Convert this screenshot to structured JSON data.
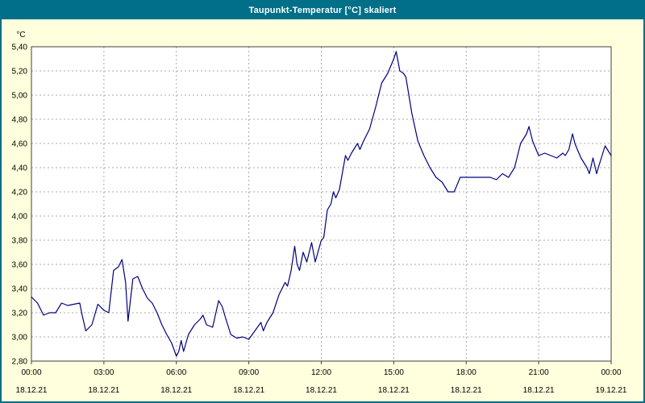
{
  "window": {
    "title": "Taupunkt-Temperatur [°C] skaliert"
  },
  "colors": {
    "title_bar": "#006f87",
    "page_background": "#ffffdd",
    "plot_background": "#ffffff",
    "grid": "#a8a8a8",
    "frame": "#404040",
    "line": "#000080"
  },
  "chart_data": {
    "type": "line",
    "title": "Taupunkt-Temperatur [°C] skaliert",
    "ylabel": "°C",
    "ylim": [
      2.8,
      5.4
    ],
    "ytick_step": 0.2,
    "ytick_labels": [
      "5,40",
      "5,20",
      "5,00",
      "4,80",
      "4,60",
      "4,40",
      "4,20",
      "4,00",
      "3,80",
      "3,60",
      "3,40",
      "3,20",
      "3,00",
      "2,80"
    ],
    "x_hours_range": [
      0,
      24
    ],
    "grid": "dashed",
    "legend_position": "none",
    "xticks": [
      {
        "hour": 0,
        "time": "00:00",
        "date": "18.12.21"
      },
      {
        "hour": 3,
        "time": "03:00",
        "date": "18.12.21"
      },
      {
        "hour": 6,
        "time": "06:00",
        "date": "18.12.21"
      },
      {
        "hour": 9,
        "time": "09:00",
        "date": "18.12.21"
      },
      {
        "hour": 12,
        "time": "12:00",
        "date": "18.12.21"
      },
      {
        "hour": 15,
        "time": "15:00",
        "date": "18.12.21"
      },
      {
        "hour": 18,
        "time": "18:00",
        "date": "18.12.21"
      },
      {
        "hour": 21,
        "time": "21:00",
        "date": "18.12.21"
      },
      {
        "hour": 24,
        "time": "00:00",
        "date": "19.12.21"
      }
    ],
    "series": [
      {
        "name": "Taupunkt-Temperatur",
        "color": "#000080",
        "points": [
          [
            0,
            3.33
          ],
          [
            0.25,
            3.28
          ],
          [
            0.5,
            3.18
          ],
          [
            0.75,
            3.2
          ],
          [
            1,
            3.2
          ],
          [
            1.25,
            3.28
          ],
          [
            1.5,
            3.26
          ],
          [
            1.75,
            3.27
          ],
          [
            2,
            3.28
          ],
          [
            2.1,
            3.18
          ],
          [
            2.25,
            3.05
          ],
          [
            2.5,
            3.1
          ],
          [
            2.75,
            3.27
          ],
          [
            3,
            3.22
          ],
          [
            3.2,
            3.2
          ],
          [
            3.4,
            3.55
          ],
          [
            3.6,
            3.58
          ],
          [
            3.75,
            3.64
          ],
          [
            3.9,
            3.45
          ],
          [
            4,
            3.13
          ],
          [
            4.2,
            3.48
          ],
          [
            4.4,
            3.5
          ],
          [
            4.6,
            3.4
          ],
          [
            4.8,
            3.32
          ],
          [
            5,
            3.28
          ],
          [
            5.2,
            3.2
          ],
          [
            5.4,
            3.1
          ],
          [
            5.6,
            3.02
          ],
          [
            5.8,
            2.95
          ],
          [
            6,
            2.84
          ],
          [
            6.1,
            2.88
          ],
          [
            6.2,
            2.97
          ],
          [
            6.3,
            2.88
          ],
          [
            6.5,
            3.02
          ],
          [
            6.75,
            3.1
          ],
          [
            7,
            3.15
          ],
          [
            7.1,
            3.18
          ],
          [
            7.25,
            3.1
          ],
          [
            7.5,
            3.08
          ],
          [
            7.75,
            3.3
          ],
          [
            7.9,
            3.25
          ],
          [
            8,
            3.18
          ],
          [
            8.25,
            3.02
          ],
          [
            8.5,
            2.99
          ],
          [
            8.75,
            3.0
          ],
          [
            9,
            2.98
          ],
          [
            9.25,
            3.05
          ],
          [
            9.5,
            3.12
          ],
          [
            9.6,
            3.05
          ],
          [
            9.75,
            3.12
          ],
          [
            10,
            3.2
          ],
          [
            10.25,
            3.35
          ],
          [
            10.5,
            3.45
          ],
          [
            10.6,
            3.42
          ],
          [
            10.75,
            3.55
          ],
          [
            10.9,
            3.75
          ],
          [
            11,
            3.6
          ],
          [
            11.1,
            3.55
          ],
          [
            11.25,
            3.7
          ],
          [
            11.4,
            3.62
          ],
          [
            11.5,
            3.7
          ],
          [
            11.6,
            3.78
          ],
          [
            11.75,
            3.62
          ],
          [
            12,
            3.8
          ],
          [
            12.1,
            3.82
          ],
          [
            12.25,
            4.05
          ],
          [
            12.4,
            4.1
          ],
          [
            12.5,
            4.2
          ],
          [
            12.6,
            4.15
          ],
          [
            12.75,
            4.22
          ],
          [
            13,
            4.5
          ],
          [
            13.1,
            4.46
          ],
          [
            13.25,
            4.52
          ],
          [
            13.5,
            4.6
          ],
          [
            13.6,
            4.55
          ],
          [
            13.75,
            4.62
          ],
          [
            14,
            4.72
          ],
          [
            14.25,
            4.9
          ],
          [
            14.5,
            5.1
          ],
          [
            14.75,
            5.18
          ],
          [
            15,
            5.3
          ],
          [
            15.1,
            5.36
          ],
          [
            15.25,
            5.2
          ],
          [
            15.4,
            5.18
          ],
          [
            15.5,
            5.15
          ],
          [
            15.75,
            4.85
          ],
          [
            16,
            4.62
          ],
          [
            16.25,
            4.5
          ],
          [
            16.5,
            4.4
          ],
          [
            16.75,
            4.32
          ],
          [
            17,
            4.28
          ],
          [
            17.25,
            4.2
          ],
          [
            17.5,
            4.2
          ],
          [
            17.75,
            4.32
          ],
          [
            18,
            4.32
          ],
          [
            18.5,
            4.32
          ],
          [
            19,
            4.32
          ],
          [
            19.25,
            4.3
          ],
          [
            19.5,
            4.35
          ],
          [
            19.75,
            4.32
          ],
          [
            20,
            4.4
          ],
          [
            20.25,
            4.6
          ],
          [
            20.5,
            4.68
          ],
          [
            20.6,
            4.74
          ],
          [
            20.75,
            4.62
          ],
          [
            21,
            4.5
          ],
          [
            21.25,
            4.52
          ],
          [
            21.5,
            4.5
          ],
          [
            21.75,
            4.48
          ],
          [
            22,
            4.52
          ],
          [
            22.1,
            4.5
          ],
          [
            22.25,
            4.55
          ],
          [
            22.4,
            4.68
          ],
          [
            22.5,
            4.6
          ],
          [
            22.6,
            4.55
          ],
          [
            22.75,
            4.48
          ],
          [
            23,
            4.4
          ],
          [
            23.1,
            4.35
          ],
          [
            23.25,
            4.48
          ],
          [
            23.4,
            4.35
          ],
          [
            23.5,
            4.42
          ],
          [
            23.75,
            4.58
          ],
          [
            24,
            4.5
          ]
        ]
      }
    ]
  }
}
